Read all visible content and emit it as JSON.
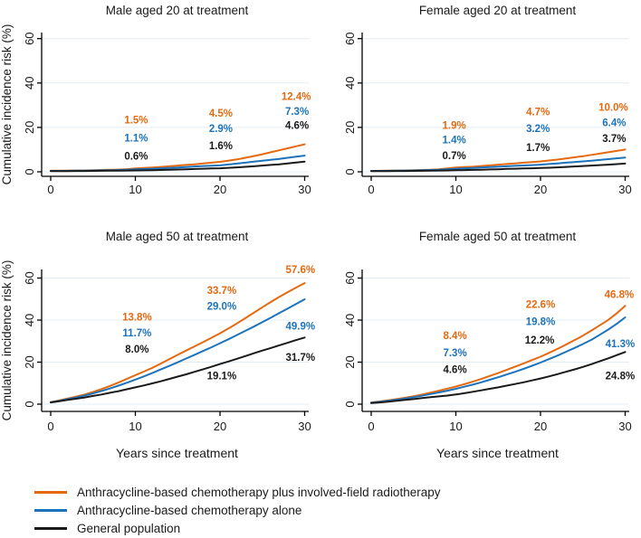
{
  "colors": {
    "orange": "#e56910",
    "blue": "#1d73bb",
    "black": "#1a1a1a",
    "grid": "#e3ecf4",
    "axis": "#000000",
    "text": "#1a1a1a"
  },
  "axes": {
    "y_title": "Cumulative incidence risk (%)",
    "x_title": "Years since treatment",
    "y_ticks": [
      "0",
      "20",
      "40",
      "60"
    ],
    "y_tick_values": [
      0,
      20,
      40,
      60
    ],
    "x_ticks": [
      "0",
      "10",
      "20",
      "30"
    ],
    "x_tick_values": [
      0,
      10,
      20,
      30
    ]
  },
  "legend": {
    "items": [
      {
        "label": "Anthracycline-based chemotherapy plus involved-field radiotherapy",
        "color_key": "orange"
      },
      {
        "label": "Anthracycline-based chemotherapy alone",
        "color_key": "blue"
      },
      {
        "label": "General population",
        "color_key": "black"
      }
    ]
  },
  "chart_data": {
    "type": "line",
    "xlabel": "Years since treatment",
    "ylabel": "Cumulative incidence risk (%)",
    "xlim": [
      0,
      30
    ],
    "ylim": [
      0,
      60
    ],
    "grid": "horizontal-only",
    "legend_position": "bottom-left",
    "x_years": [
      0,
      1,
      2,
      3,
      4,
      5,
      6,
      7,
      8,
      9,
      10,
      11,
      12,
      13,
      14,
      15,
      16,
      17,
      18,
      19,
      20,
      21,
      22,
      23,
      24,
      25,
      26,
      27,
      28,
      29,
      30
    ],
    "panels": [
      {
        "title": "Male aged 20 at treatment",
        "show_y_title": true,
        "show_x_label": false,
        "series": [
          {
            "name": "Anthracycline-based chemotherapy plus involved-field radiotherapy",
            "color_key": "orange",
            "values": [
              0.5,
              0.5,
              0.5,
              0.6,
              0.6,
              0.7,
              0.8,
              0.9,
              1.0,
              1.2,
              1.5,
              1.7,
              1.9,
              2.2,
              2.5,
              2.8,
              3.1,
              3.4,
              3.8,
              4.1,
              4.5,
              5.0,
              5.6,
              6.3,
              7.1,
              7.9,
              8.8,
              9.7,
              10.6,
              11.5,
              12.4
            ]
          },
          {
            "name": "Anthracycline-based chemotherapy alone",
            "color_key": "blue",
            "values": [
              0.4,
              0.4,
              0.45,
              0.5,
              0.5,
              0.6,
              0.65,
              0.7,
              0.8,
              0.95,
              1.1,
              1.25,
              1.4,
              1.55,
              1.75,
              1.95,
              2.15,
              2.4,
              2.6,
              2.75,
              2.9,
              3.3,
              3.7,
              4.1,
              4.6,
              5.0,
              5.4,
              5.8,
              6.3,
              6.8,
              7.3
            ]
          },
          {
            "name": "General population",
            "color_key": "black",
            "values": [
              0.3,
              0.3,
              0.32,
              0.35,
              0.37,
              0.4,
              0.43,
              0.47,
              0.5,
              0.55,
              0.6,
              0.66,
              0.73,
              0.8,
              0.9,
              1.0,
              1.1,
              1.25,
              1.4,
              1.5,
              1.6,
              1.8,
              2.0,
              2.25,
              2.5,
              2.8,
              3.1,
              3.4,
              3.8,
              4.2,
              4.6
            ]
          }
        ],
        "annotations": [
          {
            "x": 10.1,
            "y": 23.5,
            "text": "1.5%",
            "color_key": "orange"
          },
          {
            "x": 10.1,
            "y": 15.2,
            "text": "1.1%",
            "color_key": "blue"
          },
          {
            "x": 10.1,
            "y": 7.2,
            "text": "0.6%",
            "color_key": "black"
          },
          {
            "x": 20.1,
            "y": 26.4,
            "text": "4.5%",
            "color_key": "orange"
          },
          {
            "x": 20.1,
            "y": 19.6,
            "text": "2.9%",
            "color_key": "blue"
          },
          {
            "x": 20.1,
            "y": 11.8,
            "text": "1.6%",
            "color_key": "black"
          },
          {
            "x": 29.0,
            "y": 34.0,
            "text": "12.4%",
            "color_key": "orange"
          },
          {
            "x": 29.1,
            "y": 27.2,
            "text": "7.3%",
            "color_key": "blue"
          },
          {
            "x": 29.1,
            "y": 20.9,
            "text": "4.6%",
            "color_key": "black"
          }
        ]
      },
      {
        "title": "Female aged 20 at treatment",
        "show_y_title": false,
        "show_x_label": false,
        "series": [
          {
            "name": "Anthracycline-based chemotherapy plus involved-field radiotherapy",
            "color_key": "orange",
            "values": [
              0.4,
              0.45,
              0.5,
              0.55,
              0.6,
              0.7,
              0.8,
              0.95,
              1.1,
              1.5,
              1.9,
              2.1,
              2.3,
              2.6,
              2.9,
              3.2,
              3.5,
              3.8,
              4.1,
              4.4,
              4.7,
              5.1,
              5.5,
              6.0,
              6.5,
              7.0,
              7.6,
              8.2,
              8.8,
              9.4,
              10.0
            ]
          },
          {
            "name": "Anthracycline-based chemotherapy alone",
            "color_key": "blue",
            "values": [
              0.4,
              0.42,
              0.45,
              0.5,
              0.55,
              0.6,
              0.7,
              0.8,
              0.9,
              1.15,
              1.4,
              1.55,
              1.7,
              1.9,
              2.1,
              2.3,
              2.5,
              2.7,
              2.85,
              3.0,
              3.2,
              3.5,
              3.8,
              4.1,
              4.4,
              4.7,
              5.0,
              5.35,
              5.7,
              6.05,
              6.4
            ]
          },
          {
            "name": "General population",
            "color_key": "black",
            "values": [
              0.3,
              0.3,
              0.32,
              0.35,
              0.38,
              0.4,
              0.45,
              0.5,
              0.55,
              0.6,
              0.7,
              0.78,
              0.85,
              0.95,
              1.05,
              1.15,
              1.3,
              1.4,
              1.5,
              1.6,
              1.7,
              1.85,
              2.0,
              2.2,
              2.4,
              2.6,
              2.8,
              3.0,
              3.2,
              3.45,
              3.7
            ]
          }
        ],
        "annotations": [
          {
            "x": 9.8,
            "y": 21.0,
            "text": "1.9%",
            "color_key": "orange"
          },
          {
            "x": 9.8,
            "y": 14.4,
            "text": "1.4%",
            "color_key": "blue"
          },
          {
            "x": 9.8,
            "y": 7.3,
            "text": "0.7%",
            "color_key": "black"
          },
          {
            "x": 19.7,
            "y": 27.0,
            "text": "4.7%",
            "color_key": "orange"
          },
          {
            "x": 19.7,
            "y": 19.6,
            "text": "3.2%",
            "color_key": "blue"
          },
          {
            "x": 19.7,
            "y": 10.9,
            "text": "1.7%",
            "color_key": "black"
          },
          {
            "x": 28.6,
            "y": 29.2,
            "text": "10.0%",
            "color_key": "orange"
          },
          {
            "x": 28.7,
            "y": 22.1,
            "text": "6.4%",
            "color_key": "blue"
          },
          {
            "x": 28.7,
            "y": 15.1,
            "text": "3.7%",
            "color_key": "black"
          }
        ]
      },
      {
        "title": "Male aged 50 at treatment",
        "show_y_title": true,
        "show_x_label": true,
        "series": [
          {
            "name": "Anthracycline-based chemotherapy plus involved-field radiotherapy",
            "color_key": "orange",
            "values": [
              1.0,
              1.8,
              2.7,
              3.6,
              4.6,
              5.8,
              7.2,
              8.7,
              10.3,
              12.0,
              13.8,
              15.5,
              17.3,
              19.3,
              21.4,
              23.5,
              25.5,
              27.5,
              29.5,
              31.6,
              33.7,
              36.0,
              38.4,
              40.9,
              43.5,
              46.1,
              48.6,
              51.0,
              53.3,
              55.5,
              57.6
            ]
          },
          {
            "name": "Anthracycline-based chemotherapy alone",
            "color_key": "blue",
            "values": [
              0.9,
              1.6,
              2.4,
              3.2,
              4.1,
              5.1,
              6.3,
              7.5,
              8.8,
              10.2,
              11.7,
              13.2,
              14.8,
              16.5,
              18.2,
              19.9,
              21.7,
              23.5,
              25.3,
              27.1,
              29.0,
              30.9,
              32.9,
              34.9,
              36.9,
              39.0,
              41.1,
              43.3,
              45.5,
              47.7,
              49.9
            ]
          },
          {
            "name": "General population",
            "color_key": "black",
            "values": [
              0.8,
              1.4,
              2.0,
              2.6,
              3.2,
              3.9,
              4.6,
              5.4,
              6.2,
              7.1,
              8.0,
              8.9,
              9.9,
              10.9,
              12.0,
              13.1,
              14.2,
              15.4,
              16.6,
              17.8,
              19.1,
              20.3,
              21.6,
              22.9,
              24.2,
              25.5,
              26.7,
              28.0,
              29.2,
              30.5,
              31.7
            ]
          }
        ],
        "annotations": [
          {
            "x": 10.2,
            "y": 41.5,
            "text": "13.8%",
            "color_key": "orange"
          },
          {
            "x": 10.2,
            "y": 34.0,
            "text": "11.7%",
            "color_key": "blue"
          },
          {
            "x": 10.2,
            "y": 26.3,
            "text": "8.0%",
            "color_key": "black"
          },
          {
            "x": 20.2,
            "y": 54.3,
            "text": "33.7%",
            "color_key": "orange"
          },
          {
            "x": 20.2,
            "y": 46.6,
            "text": "29.0%",
            "color_key": "blue"
          },
          {
            "x": 20.2,
            "y": 13.5,
            "text": "19.1%",
            "color_key": "black"
          },
          {
            "x": 29.5,
            "y": 64.0,
            "text": "57.6%",
            "color_key": "orange"
          },
          {
            "x": 29.5,
            "y": 37.2,
            "text": "49.9%",
            "color_key": "blue"
          },
          {
            "x": 29.5,
            "y": 22.4,
            "text": "31.7%",
            "color_key": "black"
          }
        ]
      },
      {
        "title": "Female aged 50 at treatment",
        "show_y_title": false,
        "show_x_label": true,
        "series": [
          {
            "name": "Anthracycline-based chemotherapy plus involved-field radiotherapy",
            "color_key": "orange",
            "values": [
              0.8,
              1.3,
              1.8,
              2.4,
              3.1,
              3.8,
              4.6,
              5.5,
              6.4,
              7.4,
              8.4,
              9.5,
              10.7,
              12.0,
              13.4,
              14.8,
              16.3,
              17.8,
              19.4,
              21.0,
              22.6,
              24.4,
              26.3,
              28.3,
              30.4,
              32.6,
              35.0,
              37.5,
              40.1,
              43.2,
              46.8
            ]
          },
          {
            "name": "Anthracycline-based chemotherapy alone",
            "color_key": "blue",
            "values": [
              0.7,
              1.1,
              1.6,
              2.1,
              2.7,
              3.3,
              4.0,
              4.8,
              5.6,
              6.4,
              7.3,
              8.3,
              9.3,
              10.4,
              11.6,
              12.8,
              14.1,
              15.4,
              16.8,
              18.3,
              19.8,
              21.4,
              23.1,
              24.9,
              26.7,
              28.6,
              30.6,
              33.0,
              35.5,
              38.2,
              41.3
            ]
          },
          {
            "name": "General population",
            "color_key": "black",
            "values": [
              0.5,
              0.8,
              1.2,
              1.6,
              2.0,
              2.4,
              2.9,
              3.3,
              3.7,
              4.1,
              4.6,
              5.2,
              5.9,
              6.6,
              7.3,
              8.0,
              8.8,
              9.6,
              10.4,
              11.3,
              12.2,
              13.2,
              14.3,
              15.4,
              16.5,
              17.7,
              19.0,
              20.4,
              21.8,
              23.3,
              24.8
            ]
          }
        ],
        "annotations": [
          {
            "x": 9.9,
            "y": 32.6,
            "text": "8.4%",
            "color_key": "orange"
          },
          {
            "x": 9.9,
            "y": 24.6,
            "text": "7.3%",
            "color_key": "blue"
          },
          {
            "x": 9.9,
            "y": 16.5,
            "text": "4.6%",
            "color_key": "black"
          },
          {
            "x": 20.0,
            "y": 47.5,
            "text": "22.6%",
            "color_key": "orange"
          },
          {
            "x": 20.0,
            "y": 39.4,
            "text": "19.8%",
            "color_key": "blue"
          },
          {
            "x": 19.9,
            "y": 30.5,
            "text": "12.2%",
            "color_key": "black"
          },
          {
            "x": 29.3,
            "y": 52.2,
            "text": "46.8%",
            "color_key": "orange"
          },
          {
            "x": 29.4,
            "y": 28.8,
            "text": "41.3%",
            "color_key": "blue"
          },
          {
            "x": 29.4,
            "y": 13.6,
            "text": "24.8%",
            "color_key": "black"
          }
        ]
      }
    ]
  }
}
